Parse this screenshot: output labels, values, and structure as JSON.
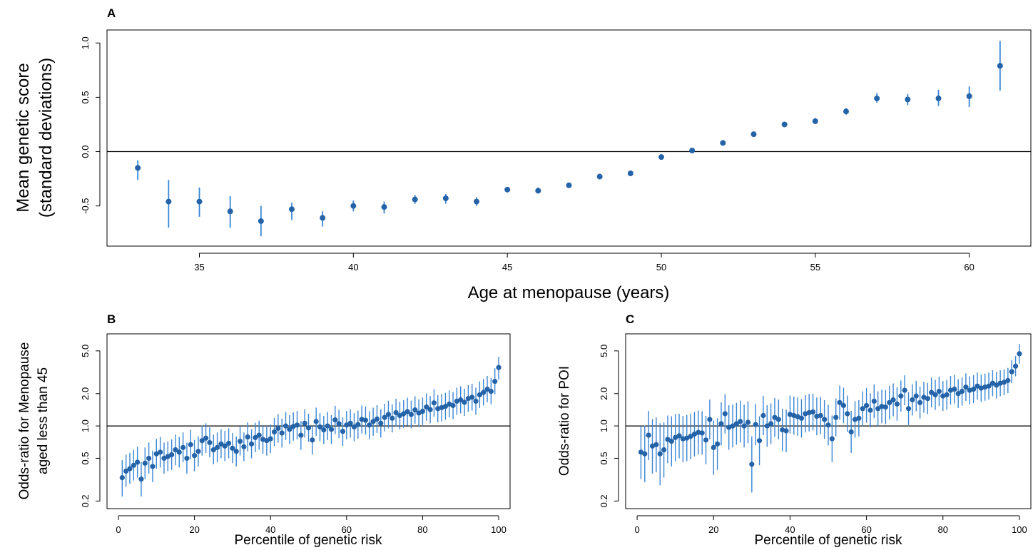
{
  "marker_color": "#2563a8",
  "bar_color": "#3a86d4",
  "chart_data": [
    {
      "panel": "A",
      "type": "scatter",
      "xlabel": "Age at menopause (years)",
      "ylabel_lines": [
        "Mean genetic score",
        "(standard deviations)"
      ],
      "xlim": [
        32,
        62
      ],
      "ylim": [
        -0.87,
        1.12
      ],
      "x_ticks": [
        35,
        40,
        45,
        50,
        55,
        60
      ],
      "y_ticks": [
        -0.5,
        0.0,
        0.5,
        1.0
      ],
      "y_tick_labels": [
        "-0.5",
        "0.0",
        "0.5",
        "1.0"
      ],
      "reference_line_y": 0,
      "points": [
        {
          "x": 33,
          "y": -0.15,
          "lo": -0.26,
          "hi": -0.08
        },
        {
          "x": 34,
          "y": -0.46,
          "lo": -0.7,
          "hi": -0.26
        },
        {
          "x": 35,
          "y": -0.46,
          "lo": -0.6,
          "hi": -0.33
        },
        {
          "x": 36,
          "y": -0.55,
          "lo": -0.7,
          "hi": -0.41
        },
        {
          "x": 37,
          "y": -0.64,
          "lo": -0.78,
          "hi": -0.5
        },
        {
          "x": 38,
          "y": -0.53,
          "lo": -0.63,
          "hi": -0.47
        },
        {
          "x": 39,
          "y": -0.61,
          "lo": -0.69,
          "hi": -0.55
        },
        {
          "x": 40,
          "y": -0.5,
          "lo": -0.55,
          "hi": -0.45
        },
        {
          "x": 41,
          "y": -0.51,
          "lo": -0.57,
          "hi": -0.46
        },
        {
          "x": 42,
          "y": -0.44,
          "lo": -0.48,
          "hi": -0.4
        },
        {
          "x": 43,
          "y": -0.43,
          "lo": -0.48,
          "hi": -0.39
        },
        {
          "x": 44,
          "y": -0.46,
          "lo": -0.5,
          "hi": -0.42
        },
        {
          "x": 45,
          "y": -0.35,
          "lo": -0.37,
          "hi": -0.33
        },
        {
          "x": 46,
          "y": -0.36,
          "lo": -0.38,
          "hi": -0.33
        },
        {
          "x": 47,
          "y": -0.31,
          "lo": -0.33,
          "hi": -0.29
        },
        {
          "x": 48,
          "y": -0.23,
          "lo": -0.25,
          "hi": -0.22
        },
        {
          "x": 49,
          "y": -0.2,
          "lo": -0.21,
          "hi": -0.19
        },
        {
          "x": 50,
          "y": -0.05,
          "lo": -0.06,
          "hi": -0.04
        },
        {
          "x": 51,
          "y": 0.01,
          "lo": 0.0,
          "hi": 0.02
        },
        {
          "x": 52,
          "y": 0.08,
          "lo": 0.07,
          "hi": 0.1
        },
        {
          "x": 53,
          "y": 0.16,
          "lo": 0.15,
          "hi": 0.18
        },
        {
          "x": 54,
          "y": 0.25,
          "lo": 0.24,
          "hi": 0.27
        },
        {
          "x": 55,
          "y": 0.28,
          "lo": 0.26,
          "hi": 0.31
        },
        {
          "x": 56,
          "y": 0.37,
          "lo": 0.34,
          "hi": 0.4
        },
        {
          "x": 57,
          "y": 0.49,
          "lo": 0.45,
          "hi": 0.54
        },
        {
          "x": 58,
          "y": 0.48,
          "lo": 0.43,
          "hi": 0.53
        },
        {
          "x": 59,
          "y": 0.49,
          "lo": 0.42,
          "hi": 0.57
        },
        {
          "x": 60,
          "y": 0.51,
          "lo": 0.41,
          "hi": 0.6
        },
        {
          "x": 61,
          "y": 0.79,
          "lo": 0.56,
          "hi": 1.02
        }
      ]
    },
    {
      "panel": "B",
      "type": "scatter",
      "xlabel": "Percentile of genetic risk",
      "ylabel_lines": [
        "Odds-ratio for Menopause",
        "aged less than 45"
      ],
      "y_scale": "log",
      "xlim": [
        -3,
        103
      ],
      "ylim": [
        0.17,
        7.2
      ],
      "x_ticks": [
        0,
        20,
        40,
        60,
        80,
        100
      ],
      "y_ticks": [
        0.2,
        0.5,
        1.0,
        2.0,
        5.0
      ],
      "y_tick_labels": [
        "0.2",
        "0.5",
        "1.0",
        "2.0",
        "5.0"
      ],
      "reference_line_y": 1.0,
      "y": [
        0.33,
        0.38,
        0.4,
        0.43,
        0.46,
        0.32,
        0.45,
        0.5,
        0.42,
        0.55,
        0.57,
        0.5,
        0.52,
        0.54,
        0.6,
        0.57,
        0.63,
        0.5,
        0.67,
        0.53,
        0.58,
        0.73,
        0.77,
        0.7,
        0.6,
        0.63,
        0.68,
        0.65,
        0.69,
        0.62,
        0.58,
        0.72,
        0.64,
        0.79,
        0.68,
        0.78,
        0.82,
        0.75,
        0.73,
        0.76,
        0.88,
        0.95,
        0.86,
        1.0,
        0.93,
        0.99,
        1.02,
        0.82,
        1.06,
        0.96,
        0.74,
        1.1,
        0.98,
        0.92,
        1.0,
        0.93,
        1.14,
        1.05,
        0.89,
        1.02,
        1.06,
        0.98,
        1.03,
        1.15,
        1.13,
        1.02,
        1.1,
        1.16,
        1.06,
        1.2,
        1.28,
        1.18,
        1.33,
        1.25,
        1.3,
        1.36,
        1.28,
        1.41,
        1.32,
        1.37,
        1.5,
        1.42,
        1.64,
        1.45,
        1.48,
        1.52,
        1.6,
        1.55,
        1.7,
        1.75,
        1.66,
        1.8,
        1.85,
        1.7,
        1.95,
        2.05,
        2.2,
        2.1,
        2.6,
        3.5
      ],
      "ci_lo": [
        0.22,
        0.27,
        0.29,
        0.31,
        0.33,
        0.22,
        0.32,
        0.36,
        0.3,
        0.4,
        0.41,
        0.36,
        0.38,
        0.39,
        0.43,
        0.41,
        0.46,
        0.36,
        0.49,
        0.38,
        0.42,
        0.53,
        0.56,
        0.51,
        0.44,
        0.46,
        0.5,
        0.47,
        0.5,
        0.45,
        0.42,
        0.53,
        0.47,
        0.58,
        0.5,
        0.57,
        0.6,
        0.55,
        0.53,
        0.56,
        0.65,
        0.7,
        0.63,
        0.74,
        0.68,
        0.73,
        0.75,
        0.6,
        0.78,
        0.71,
        0.54,
        0.81,
        0.72,
        0.68,
        0.74,
        0.68,
        0.84,
        0.77,
        0.65,
        0.75,
        0.78,
        0.72,
        0.76,
        0.85,
        0.83,
        0.75,
        0.81,
        0.86,
        0.78,
        0.89,
        0.95,
        0.87,
        0.99,
        0.93,
        0.96,
        1.01,
        0.95,
        1.05,
        0.98,
        1.02,
        1.12,
        1.06,
        1.22,
        1.08,
        1.1,
        1.14,
        1.2,
        1.16,
        1.27,
        1.31,
        1.24,
        1.35,
        1.39,
        1.27,
        1.47,
        1.55,
        1.66,
        1.59,
        1.97,
        2.7
      ],
      "ci_hi": [
        0.48,
        0.54,
        0.56,
        0.6,
        0.64,
        0.46,
        0.63,
        0.7,
        0.59,
        0.76,
        0.79,
        0.7,
        0.72,
        0.75,
        0.83,
        0.79,
        0.87,
        0.7,
        0.92,
        0.74,
        0.8,
        1.01,
        1.06,
        0.97,
        0.83,
        0.87,
        0.93,
        0.9,
        0.95,
        0.86,
        0.8,
        0.98,
        0.87,
        1.08,
        0.93,
        1.07,
        1.12,
        1.02,
        1.0,
        1.03,
        1.19,
        1.29,
        1.17,
        1.35,
        1.26,
        1.34,
        1.38,
        1.11,
        1.43,
        1.3,
        1.0,
        1.48,
        1.32,
        1.24,
        1.35,
        1.26,
        1.54,
        1.42,
        1.2,
        1.38,
        1.43,
        1.32,
        1.39,
        1.55,
        1.52,
        1.37,
        1.48,
        1.56,
        1.43,
        1.61,
        1.72,
        1.59,
        1.79,
        1.68,
        1.74,
        1.83,
        1.72,
        1.89,
        1.77,
        1.84,
        2.01,
        1.9,
        2.2,
        1.94,
        1.98,
        2.03,
        2.14,
        2.07,
        2.27,
        2.34,
        2.22,
        2.4,
        2.47,
        2.27,
        2.6,
        2.73,
        2.92,
        2.79,
        3.44,
        4.4
      ]
    },
    {
      "panel": "C",
      "type": "scatter",
      "xlabel": "Percentile of genetic risk",
      "ylabel_lines": [
        "Odds-ratio for POI"
      ],
      "y_scale": "log",
      "xlim": [
        -3,
        103
      ],
      "ylim": [
        0.17,
        7.2
      ],
      "x_ticks": [
        0,
        20,
        40,
        60,
        80,
        100
      ],
      "y_ticks": [
        0.2,
        0.5,
        1.0,
        2.0,
        5.0
      ],
      "y_tick_labels": [
        "0.2",
        "0.5",
        "1.0",
        "2.0",
        "5.0"
      ],
      "reference_line_y": 1.0,
      "y": [
        0.57,
        0.55,
        0.82,
        0.65,
        0.67,
        0.55,
        0.6,
        0.75,
        0.72,
        0.78,
        0.81,
        0.76,
        0.77,
        0.8,
        0.84,
        0.87,
        0.86,
        0.74,
        1.15,
        0.63,
        0.68,
        1.05,
        1.3,
        0.97,
        1.0,
        1.05,
        1.1,
        1.0,
        1.08,
        0.44,
        1.03,
        0.73,
        1.25,
        1.0,
        1.05,
        1.2,
        1.15,
        0.92,
        0.9,
        1.28,
        1.25,
        1.22,
        1.18,
        1.3,
        1.33,
        1.35,
        1.23,
        1.25,
        1.15,
        1.02,
        0.76,
        1.2,
        1.65,
        1.55,
        1.3,
        0.88,
        1.15,
        1.18,
        1.45,
        1.55,
        1.4,
        1.7,
        1.45,
        1.52,
        1.5,
        1.65,
        1.75,
        1.6,
        1.9,
        2.15,
        1.45,
        1.75,
        1.9,
        1.65,
        1.85,
        1.8,
        2.05,
        1.95,
        2.1,
        1.9,
        1.95,
        2.15,
        2.2,
        2.0,
        2.1,
        2.3,
        2.15,
        2.2,
        2.35,
        2.25,
        2.3,
        2.35,
        2.5,
        2.4,
        2.5,
        2.55,
        2.65,
        3.2,
        3.6,
        4.7
      ],
      "ci_lo": [
        0.32,
        0.3,
        0.48,
        0.36,
        0.37,
        0.28,
        0.33,
        0.45,
        0.42,
        0.47,
        0.5,
        0.46,
        0.47,
        0.49,
        0.52,
        0.54,
        0.54,
        0.44,
        0.75,
        0.35,
        0.39,
        0.66,
        0.85,
        0.6,
        0.63,
        0.67,
        0.7,
        0.63,
        0.69,
        0.24,
        0.66,
        0.43,
        0.82,
        0.64,
        0.68,
        0.79,
        0.75,
        0.58,
        0.57,
        0.85,
        0.83,
        0.81,
        0.78,
        0.87,
        0.89,
        0.91,
        0.82,
        0.84,
        0.76,
        0.66,
        0.46,
        0.8,
        1.14,
        1.06,
        0.88,
        0.56,
        0.78,
        0.8,
        1.0,
        1.07,
        0.97,
        1.18,
        1.0,
        1.06,
        1.04,
        1.15,
        1.23,
        1.12,
        1.36,
        1.56,
        1.02,
        1.25,
        1.37,
        1.17,
        1.33,
        1.29,
        1.49,
        1.41,
        1.53,
        1.38,
        1.42,
        1.58,
        1.62,
        1.47,
        1.55,
        1.71,
        1.59,
        1.63,
        1.76,
        1.68,
        1.72,
        1.76,
        1.89,
        1.8,
        1.89,
        1.93,
        2.02,
        2.5,
        2.9,
        3.8
      ],
      "ci_hi": [
        1.0,
        1.01,
        1.38,
        1.16,
        1.2,
        1.06,
        1.08,
        1.25,
        1.23,
        1.29,
        1.3,
        1.24,
        1.26,
        1.3,
        1.35,
        1.39,
        1.37,
        1.24,
        1.76,
        1.12,
        1.18,
        1.66,
        1.98,
        1.56,
        1.58,
        1.64,
        1.72,
        1.58,
        1.7,
        0.8,
        1.6,
        1.23,
        1.9,
        1.56,
        1.62,
        1.82,
        1.76,
        1.45,
        1.42,
        1.92,
        1.88,
        1.84,
        1.78,
        1.94,
        1.99,
        2.0,
        1.84,
        1.86,
        1.74,
        1.57,
        1.25,
        1.8,
        2.38,
        2.27,
        1.92,
        1.38,
        1.7,
        1.74,
        2.1,
        2.25,
        2.02,
        2.44,
        2.1,
        2.18,
        2.16,
        2.36,
        2.49,
        2.29,
        2.65,
        2.96,
        2.06,
        2.44,
        2.63,
        2.33,
        2.57,
        2.51,
        2.82,
        2.69,
        2.88,
        2.62,
        2.68,
        2.92,
        2.98,
        2.72,
        2.84,
        3.09,
        2.9,
        2.97,
        3.14,
        3.01,
        3.07,
        3.13,
        3.3,
        3.19,
        3.3,
        3.36,
        3.47,
        4.09,
        4.47,
        5.8
      ]
    }
  ]
}
